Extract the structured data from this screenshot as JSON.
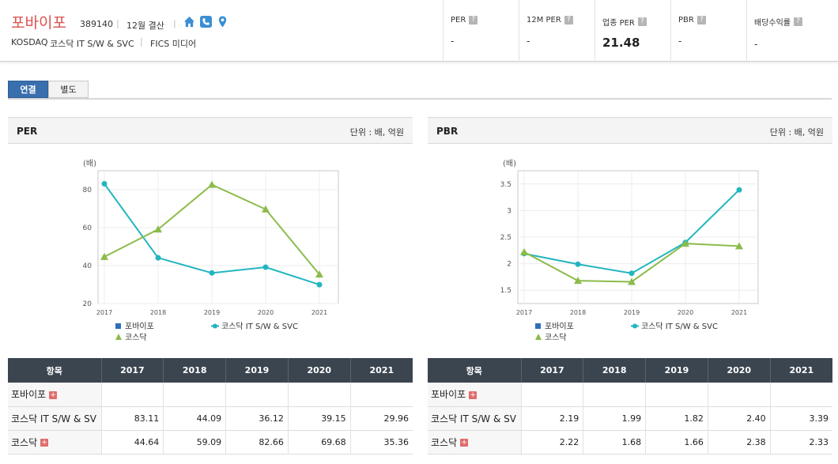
{
  "company": {
    "name": "포바이포",
    "code": "389140",
    "fiscal": "12월 결산",
    "market": "KOSDAQ",
    "sector": "코스닥 IT S/W & SVC",
    "fics": "FICS 미디어"
  },
  "metrics": [
    {
      "label": "PER",
      "value": "-"
    },
    {
      "label": "12M PER",
      "value": "-"
    },
    {
      "label": "업종 PER",
      "value": "21.48"
    },
    {
      "label": "PBR",
      "value": "-"
    },
    {
      "label": "배당수익률",
      "value": "-"
    }
  ],
  "tabs": [
    "연결",
    "별도"
  ],
  "colors": {
    "series1": "#2e6fbd",
    "series2": "#22b5c0",
    "series3": "#8cbb4a"
  },
  "icons": [
    "home-icon",
    "phone-icon",
    "location-icon"
  ],
  "table_header": [
    "항목",
    "2017",
    "2018",
    "2019",
    "2020",
    "2021"
  ],
  "chart_data": [
    {
      "type": "line",
      "title": "PER",
      "unit": "단위 : 배, 억원",
      "ylabel": "(배)",
      "categories": [
        "2017",
        "2018",
        "2019",
        "2020",
        "2021"
      ],
      "yticks": [
        "20",
        "40",
        "60",
        "80"
      ],
      "ylim": [
        20,
        90
      ],
      "series": [
        {
          "name": "포바이포",
          "values": [
            null,
            null,
            null,
            null,
            null
          ]
        },
        {
          "name": "코스닥 IT S/W & SVC",
          "values": [
            83.11,
            44.09,
            36.12,
            39.15,
            29.96
          ]
        },
        {
          "name": "코스닥",
          "values": [
            44.64,
            59.09,
            82.66,
            69.68,
            35.36
          ]
        }
      ],
      "rows": [
        {
          "label": "포바이포",
          "cells": [
            "",
            "",
            "",
            "",
            ""
          ]
        },
        {
          "label": "코스닥 IT S/W & SV",
          "cells": [
            "83.11",
            "44.09",
            "36.12",
            "39.15",
            "29.96"
          ]
        },
        {
          "label": "코스닥",
          "cells": [
            "44.64",
            "59.09",
            "82.66",
            "69.68",
            "35.36"
          ]
        }
      ]
    },
    {
      "type": "line",
      "title": "PBR",
      "unit": "단위 : 배, 억원",
      "ylabel": "(배)",
      "categories": [
        "2017",
        "2018",
        "2019",
        "2020",
        "2021"
      ],
      "yticks": [
        "1.5",
        "2",
        "2.5",
        "3",
        "3.5"
      ],
      "ylim": [
        1.25,
        3.75
      ],
      "series": [
        {
          "name": "포바이포",
          "values": [
            null,
            null,
            null,
            null,
            null
          ]
        },
        {
          "name": "코스닥 IT S/W & SVC",
          "values": [
            2.19,
            1.99,
            1.82,
            2.4,
            3.39
          ]
        },
        {
          "name": "코스닥",
          "values": [
            2.22,
            1.68,
            1.66,
            2.38,
            2.33
          ]
        }
      ],
      "rows": [
        {
          "label": "포바이포",
          "cells": [
            "",
            "",
            "",
            "",
            ""
          ]
        },
        {
          "label": "코스닥 IT S/W & SV",
          "cells": [
            "2.19",
            "1.99",
            "1.82",
            "2.40",
            "3.39"
          ]
        },
        {
          "label": "코스닥",
          "cells": [
            "2.22",
            "1.68",
            "1.66",
            "2.38",
            "2.33"
          ]
        }
      ]
    }
  ]
}
